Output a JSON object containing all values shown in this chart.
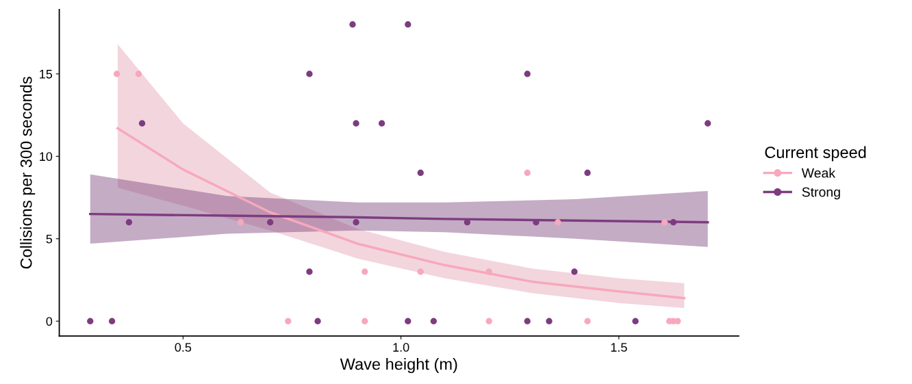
{
  "chart_data": {
    "type": "scatter",
    "xlabel": "Wave height (m)",
    "ylabel": "Collisions per 300 seconds",
    "legend_title": "Current speed",
    "xlim": [
      0.216,
      1.775
    ],
    "xticks": [
      0.5,
      {
        "value": 1.0,
        "label": "1.0"
      },
      1.5
    ],
    "ylim": [
      -0.9,
      18.9
    ],
    "yticks": [
      0,
      5,
      10,
      15
    ],
    "grid": false,
    "legend": "right",
    "marker": "circle",
    "series": [
      {
        "type": "line",
        "marker": "none",
        "color": "#f7a8bc",
        "x": [
          0.35,
          0.5,
          0.7,
          0.9,
          1.1,
          1.3,
          1.5,
          1.65
        ],
        "values": [
          11.7,
          9.2,
          6.6,
          4.7,
          3.4,
          2.4,
          1.8,
          1.4
        ],
        "lower": [
          8.1,
          7.0,
          5.5,
          3.8,
          2.6,
          1.7,
          1.1,
          0.8
        ],
        "upper": [
          16.8,
          12.0,
          7.8,
          5.6,
          4.2,
          3.2,
          2.6,
          2.3
        ]
      },
      {
        "type": "line",
        "marker": "none",
        "color": "#7d3c7f",
        "x": [
          0.287,
          0.6,
          0.9,
          1.1,
          1.4,
          1.704
        ],
        "values": [
          6.5,
          6.4,
          6.3,
          6.2,
          6.1,
          6.0
        ],
        "lower": [
          4.7,
          5.3,
          5.5,
          5.4,
          5.0,
          4.5
        ],
        "upper": [
          8.9,
          7.6,
          7.2,
          7.2,
          7.4,
          7.9
        ]
      },
      {
        "name": "Weak",
        "color": "#f7a8bc",
        "x": [
          0.348,
          0.398,
          0.632,
          0.741,
          0.917,
          0.917,
          1.045,
          1.202,
          1.202,
          1.29,
          1.36,
          1.428,
          1.605,
          1.616,
          1.625,
          1.635
        ],
        "values": [
          15,
          15,
          6,
          0,
          0,
          3,
          3,
          0,
          3,
          9,
          6,
          0,
          6,
          0,
          0,
          0
        ]
      },
      {
        "name": "Strong",
        "color": "#7d3c7f",
        "x": [
          0.287,
          0.337,
          0.376,
          0.406,
          0.7,
          0.79,
          0.79,
          0.809,
          0.889,
          0.897,
          0.897,
          0.956,
          1.016,
          1.016,
          1.045,
          1.075,
          1.152,
          1.29,
          1.29,
          1.31,
          1.34,
          1.398,
          1.428,
          1.538,
          1.625,
          1.704
        ],
        "values": [
          0,
          0,
          6,
          12,
          6,
          15,
          3,
          0,
          18,
          12,
          6,
          12,
          18,
          0,
          9,
          0,
          6,
          15,
          0,
          6,
          0,
          3,
          9,
          0,
          6,
          12
        ]
      }
    ]
  }
}
